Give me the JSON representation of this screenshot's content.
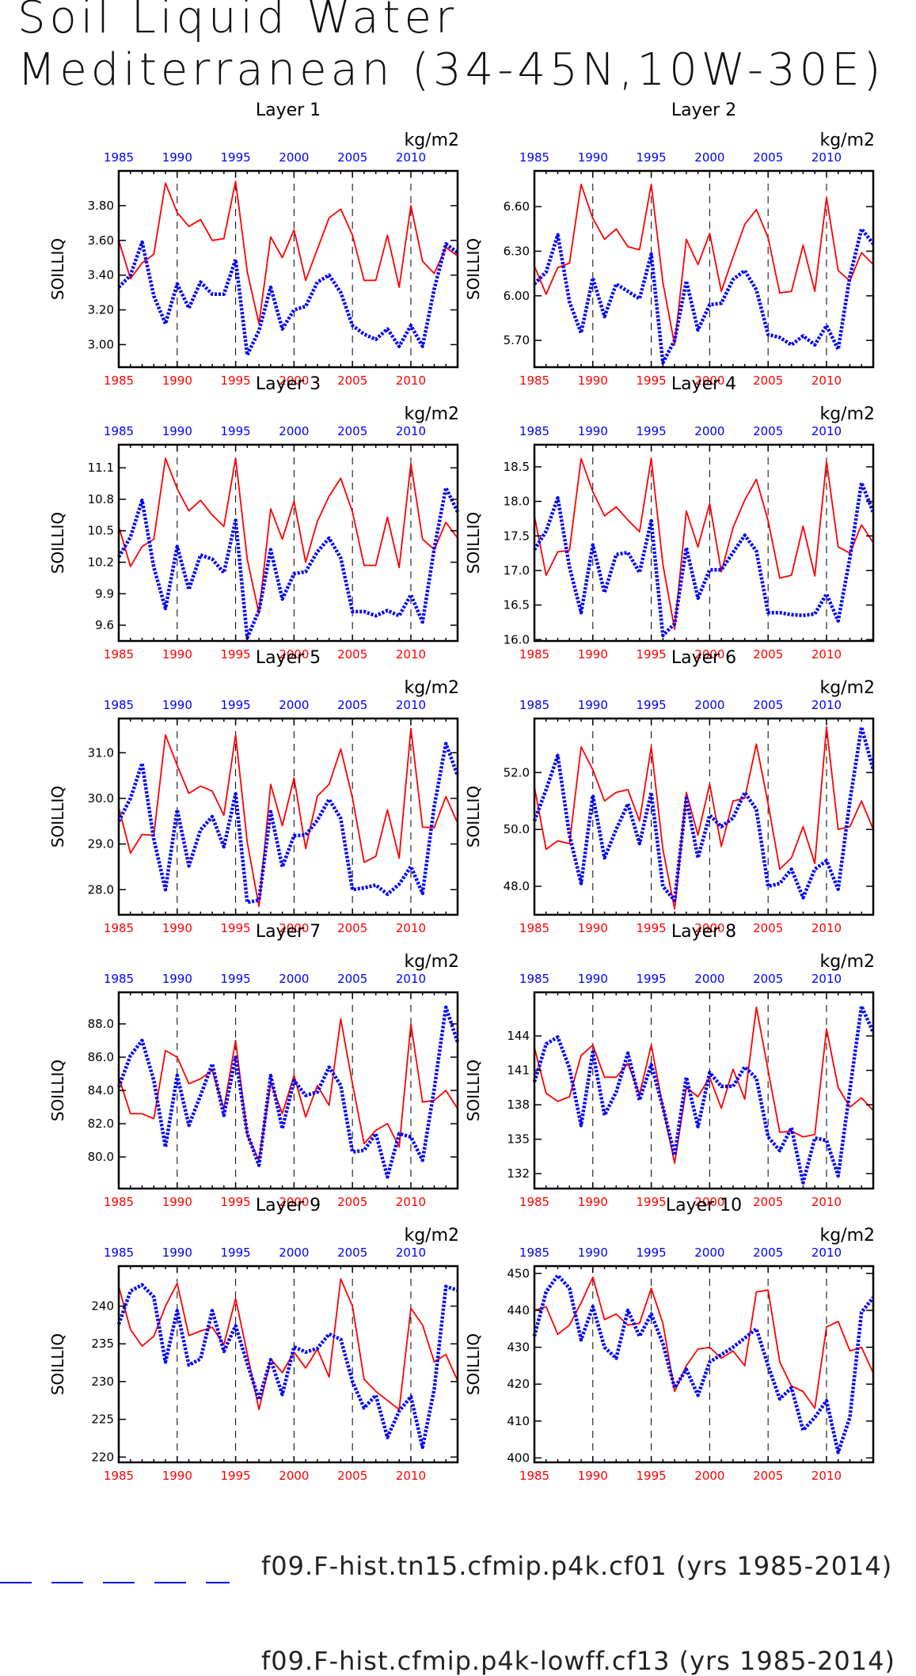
{
  "title_line1": "Soil Liquid Water",
  "title_line2": "Mediterranean (34-45N,10W-30E)",
  "ylabel": "SOILLIQ",
  "units": "kg/m2",
  "colors": {
    "blue": "#0000ff",
    "red": "#ff0000",
    "axis": "#000000"
  },
  "legend": [
    {
      "label": "f09.F-hist.tn15.cfmip.p4k.cf01 (yrs 1985-2014)",
      "color": "#0000ff",
      "style": "dashed"
    },
    {
      "label": "f09.F-hist.cfmip.p4k-lowff.cf13 (yrs 1985-2014)",
      "color": "#ff0000",
      "style": "solid"
    }
  ],
  "chart_data": [
    {
      "type": "line",
      "title": "Layer 1",
      "x_range": [
        1985,
        2014
      ],
      "x_ticks": [
        "1985",
        "1990",
        "1995",
        "2000",
        "2005",
        "2010"
      ],
      "ylim": [
        2.87,
        4.0
      ],
      "y_ticks": [
        "3.00",
        "3.20",
        "3.40",
        "3.60",
        "3.80"
      ],
      "y_tick_values": [
        3.0,
        3.2,
        3.4,
        3.6,
        3.8
      ],
      "series": [
        {
          "name": "f09.F-hist.tn15.cfmip.p4k.cf01 (yrs 1985-2014)",
          "color": "#0000ff",
          "values": [
            3.33,
            3.4,
            3.59,
            3.28,
            3.12,
            3.35,
            3.21,
            3.36,
            3.29,
            3.29,
            3.49,
            2.94,
            3.08,
            3.33,
            3.09,
            3.2,
            3.22,
            3.36,
            3.4,
            3.3,
            3.11,
            3.06,
            3.03,
            3.09,
            2.99,
            3.11,
            2.99,
            3.32,
            3.58,
            3.53
          ]
        },
        {
          "name": "f09.F-hist.cfmip.p4k-lowff.cf13 (yrs 1985-2014)",
          "color": "#ff0000",
          "values": [
            3.6,
            3.38,
            3.47,
            3.52,
            3.93,
            3.76,
            3.68,
            3.72,
            3.6,
            3.61,
            3.94,
            3.42,
            3.12,
            3.62,
            3.5,
            3.66,
            3.37,
            3.55,
            3.73,
            3.78,
            3.63,
            3.37,
            3.37,
            3.63,
            3.33,
            3.8,
            3.48,
            3.41,
            3.56,
            3.51
          ]
        }
      ]
    },
    {
      "type": "line",
      "title": "Layer 2",
      "x_range": [
        1985,
        2014
      ],
      "x_ticks": [
        "1985",
        "1990",
        "1995",
        "2000",
        "2005",
        "2010"
      ],
      "ylim": [
        5.52,
        6.84
      ],
      "y_ticks": [
        "5.70",
        "6.00",
        "6.30",
        "6.60"
      ],
      "y_tick_values": [
        5.7,
        6.0,
        6.3,
        6.6
      ],
      "series": [
        {
          "name": "f09.F-hist.tn15.cfmip.p4k.cf01 (yrs 1985-2014)",
          "color": "#0000ff",
          "values": [
            6.08,
            6.16,
            6.41,
            5.96,
            5.75,
            6.12,
            5.86,
            6.08,
            6.03,
            5.98,
            6.28,
            5.55,
            5.7,
            6.1,
            5.77,
            5.94,
            5.95,
            6.11,
            6.17,
            6.04,
            5.74,
            5.72,
            5.67,
            5.73,
            5.67,
            5.8,
            5.64,
            6.13,
            6.45,
            6.35
          ]
        },
        {
          "name": "f09.F-hist.cfmip.p4k-lowff.cf13 (yrs 1985-2014)",
          "color": "#ff0000",
          "values": [
            6.2,
            6.01,
            6.19,
            6.22,
            6.75,
            6.52,
            6.38,
            6.45,
            6.33,
            6.31,
            6.75,
            6.09,
            5.67,
            6.38,
            6.21,
            6.42,
            6.03,
            6.26,
            6.48,
            6.58,
            6.39,
            6.02,
            6.03,
            6.34,
            6.03,
            6.66,
            6.17,
            6.1,
            6.29,
            6.21
          ]
        }
      ]
    },
    {
      "type": "line",
      "title": "Layer 3",
      "x_range": [
        1985,
        2014
      ],
      "x_ticks": [
        "1985",
        "1990",
        "1995",
        "2000",
        "2005",
        "2010"
      ],
      "ylim": [
        9.45,
        11.32
      ],
      "y_ticks": [
        "9.6",
        "9.9",
        "10.2",
        "10.5",
        "10.8",
        "11.1"
      ],
      "y_tick_values": [
        9.6,
        9.9,
        10.2,
        10.5,
        10.8,
        11.1
      ],
      "series": [
        {
          "name": "f09.F-hist.tn15.cfmip.p4k.cf01 (yrs 1985-2014)",
          "color": "#0000ff",
          "values": [
            10.25,
            10.44,
            10.79,
            10.15,
            9.76,
            10.35,
            9.94,
            10.27,
            10.23,
            10.1,
            10.6,
            9.48,
            9.74,
            10.32,
            9.85,
            10.09,
            10.11,
            10.3,
            10.43,
            10.24,
            9.73,
            9.73,
            9.69,
            9.74,
            9.69,
            9.89,
            9.63,
            10.33,
            10.91,
            10.68
          ]
        },
        {
          "name": "f09.F-hist.cfmip.p4k-lowff.cf13 (yrs 1985-2014)",
          "color": "#ff0000",
          "values": [
            10.54,
            10.16,
            10.35,
            10.42,
            11.19,
            10.9,
            10.69,
            10.79,
            10.65,
            10.54,
            11.19,
            10.23,
            9.71,
            10.71,
            10.42,
            10.78,
            10.2,
            10.59,
            10.83,
            11.0,
            10.68,
            10.17,
            10.17,
            10.63,
            10.15,
            11.14,
            10.42,
            10.32,
            10.58,
            10.43
          ]
        }
      ]
    },
    {
      "type": "line",
      "title": "Layer 4",
      "x_range": [
        1985,
        2014
      ],
      "x_ticks": [
        "1985",
        "1990",
        "1995",
        "2000",
        "2005",
        "2010"
      ],
      "ylim": [
        15.98,
        18.82
      ],
      "y_ticks": [
        "16.0",
        "16.5",
        "17.0",
        "17.5",
        "18.0",
        "18.5"
      ],
      "y_tick_values": [
        16.0,
        16.5,
        17.0,
        17.5,
        18.0,
        18.5
      ],
      "series": [
        {
          "name": "f09.F-hist.tn15.cfmip.p4k.cf01 (yrs 1985-2014)",
          "color": "#0000ff",
          "values": [
            17.3,
            17.57,
            18.05,
            17.05,
            16.39,
            17.37,
            16.68,
            17.23,
            17.26,
            16.97,
            17.72,
            16.06,
            16.23,
            17.33,
            16.6,
            17.01,
            17.01,
            17.26,
            17.51,
            17.28,
            16.39,
            16.39,
            16.36,
            16.35,
            16.37,
            16.66,
            16.27,
            17.18,
            18.27,
            17.84
          ]
        },
        {
          "name": "f09.F-hist.cfmip.p4k-lowff.cf13 (yrs 1985-2014)",
          "color": "#ff0000",
          "values": [
            17.79,
            16.93,
            17.27,
            17.29,
            18.62,
            18.14,
            17.79,
            17.92,
            17.73,
            17.56,
            18.62,
            17.09,
            16.15,
            17.86,
            17.34,
            17.97,
            16.98,
            17.62,
            18.02,
            18.32,
            17.72,
            16.89,
            16.93,
            17.64,
            16.92,
            18.58,
            17.34,
            17.25,
            17.66,
            17.4
          ]
        }
      ]
    },
    {
      "type": "line",
      "title": "Layer 5",
      "x_range": [
        1985,
        2014
      ],
      "x_ticks": [
        "1985",
        "1990",
        "1995",
        "2000",
        "2005",
        "2010"
      ],
      "ylim": [
        27.45,
        31.75
      ],
      "y_ticks": [
        "28.0",
        "29.0",
        "30.0",
        "31.0"
      ],
      "y_tick_values": [
        28.0,
        29.0,
        30.0,
        31.0
      ],
      "series": [
        {
          "name": "f09.F-hist.tn15.cfmip.p4k.cf01 (yrs 1985-2014)",
          "color": "#0000ff",
          "values": [
            29.5,
            30.0,
            30.77,
            29.1,
            28.0,
            29.75,
            28.52,
            29.31,
            29.6,
            28.94,
            30.1,
            27.72,
            27.77,
            29.71,
            28.5,
            29.18,
            29.2,
            29.52,
            29.98,
            29.56,
            28.0,
            28.04,
            28.1,
            27.9,
            28.12,
            28.51,
            27.92,
            29.83,
            31.2,
            30.5
          ]
        },
        {
          "name": "f09.F-hist.cfmip.p4k-lowff.cf13 (yrs 1985-2014)",
          "color": "#ff0000",
          "values": [
            29.8,
            28.8,
            29.21,
            29.19,
            31.39,
            30.72,
            30.11,
            30.27,
            30.16,
            29.63,
            31.39,
            29.04,
            27.63,
            30.31,
            29.4,
            30.45,
            28.9,
            30.05,
            30.31,
            31.08,
            30.01,
            28.6,
            28.73,
            29.75,
            28.69,
            31.53,
            29.37,
            29.36,
            30.04,
            29.46
          ]
        }
      ]
    },
    {
      "type": "line",
      "title": "Layer 6",
      "x_range": [
        1985,
        2014
      ],
      "x_ticks": [
        "1985",
        "1990",
        "1995",
        "2000",
        "2005",
        "2010"
      ],
      "ylim": [
        47.0,
        53.9
      ],
      "y_ticks": [
        "48.0",
        "50.0",
        "52.0"
      ],
      "y_tick_values": [
        48.0,
        50.0,
        52.0
      ],
      "series": [
        {
          "name": "f09.F-hist.tn15.cfmip.p4k.cf01 (yrs 1985-2014)",
          "color": "#0000ff",
          "values": [
            50.3,
            51.4,
            52.6,
            49.8,
            48.1,
            51.2,
            49.0,
            50.0,
            50.9,
            49.5,
            51.3,
            48.0,
            47.5,
            51.1,
            49.0,
            50.5,
            50.1,
            50.4,
            51.3,
            50.7,
            48.0,
            48.1,
            48.6,
            47.6,
            48.6,
            48.9,
            47.9,
            51.0,
            53.6,
            52.1
          ]
        },
        {
          "name": "f09.F-hist.cfmip.p4k-lowff.cf13 (yrs 1985-2014)",
          "color": "#ff0000",
          "values": [
            51.5,
            49.3,
            49.6,
            49.5,
            52.9,
            52.1,
            51.0,
            51.3,
            51.4,
            50.3,
            52.9,
            49.3,
            47.2,
            51.3,
            49.8,
            51.6,
            49.4,
            51.0,
            51.1,
            53.0,
            50.9,
            48.6,
            49.0,
            50.1,
            48.8,
            53.6,
            50.0,
            50.1,
            51.0,
            50.0
          ]
        }
      ]
    },
    {
      "type": "line",
      "title": "Layer 7",
      "x_range": [
        1985,
        2014
      ],
      "x_ticks": [
        "1985",
        "1990",
        "1995",
        "2000",
        "2005",
        "2010"
      ],
      "ylim": [
        78.1,
        89.9
      ],
      "y_ticks": [
        "80.0",
        "82.0",
        "84.0",
        "86.0",
        "88.0"
      ],
      "y_tick_values": [
        80.0,
        82.0,
        84.0,
        86.0,
        88.0
      ],
      "series": [
        {
          "name": "f09.F-hist.tn15.cfmip.p4k.cf01 (yrs 1985-2014)",
          "color": "#0000ff",
          "values": [
            84.2,
            86.1,
            87.0,
            84.6,
            80.6,
            84.9,
            81.9,
            83.7,
            85.6,
            82.5,
            86.0,
            81.4,
            79.5,
            84.9,
            81.7,
            84.6,
            83.7,
            83.9,
            85.4,
            84.3,
            80.3,
            80.4,
            81.4,
            78.8,
            81.4,
            81.2,
            79.8,
            84.1,
            89.0,
            86.9
          ]
        },
        {
          "name": "f09.F-hist.cfmip.p4k-lowff.cf13 (yrs 1985-2014)",
          "color": "#ff0000",
          "values": [
            84.8,
            82.6,
            82.6,
            82.3,
            86.4,
            86.0,
            84.4,
            84.7,
            85.2,
            82.9,
            87.0,
            81.3,
            79.8,
            84.5,
            82.6,
            84.9,
            82.4,
            84.3,
            83.1,
            88.3,
            84.4,
            80.8,
            81.6,
            82.0,
            80.6,
            88.0,
            83.3,
            83.4,
            84.0,
            82.9
          ]
        }
      ]
    },
    {
      "type": "line",
      "title": "Layer 8",
      "x_range": [
        1985,
        2014
      ],
      "x_ticks": [
        "1985",
        "1990",
        "1995",
        "2000",
        "2005",
        "2010"
      ],
      "ylim": [
        130.7,
        147.8
      ],
      "y_ticks": [
        "132",
        "135",
        "138",
        "141",
        "144"
      ],
      "y_tick_values": [
        132,
        135,
        138,
        141,
        144
      ],
      "series": [
        {
          "name": "f09.F-hist.tn15.cfmip.p4k.cf01 (yrs 1985-2014)",
          "color": "#0000ff",
          "values": [
            140.0,
            143.3,
            143.9,
            141.2,
            136.2,
            142.6,
            137.1,
            139.1,
            142.5,
            138.4,
            141.5,
            137.8,
            133.6,
            140.4,
            136.1,
            140.8,
            139.6,
            139.6,
            141.3,
            140.3,
            135.2,
            134.0,
            136.0,
            131.2,
            135.1,
            134.9,
            131.8,
            139.3,
            146.6,
            144.3
          ]
        },
        {
          "name": "f09.F-hist.cfmip.p4k-lowff.cf13 (yrs 1985-2014)",
          "color": "#ff0000",
          "values": [
            143.0,
            139.0,
            138.3,
            138.7,
            142.3,
            143.2,
            140.4,
            140.4,
            141.6,
            138.9,
            143.2,
            137.8,
            132.9,
            139.5,
            138.7,
            140.4,
            137.7,
            141.1,
            138.5,
            146.5,
            141.0,
            135.6,
            135.7,
            135.2,
            135.4,
            144.6,
            139.5,
            137.8,
            138.6,
            137.5
          ]
        }
      ]
    },
    {
      "type": "line",
      "title": "Layer 9",
      "x_range": [
        1985,
        2014
      ],
      "x_ticks": [
        "1985",
        "1990",
        "1995",
        "2000",
        "2005",
        "2010"
      ],
      "ylim": [
        219.3,
        245.3
      ],
      "y_ticks": [
        "220",
        "225",
        "230",
        "235",
        "240"
      ],
      "y_tick_values": [
        220,
        225,
        230,
        235,
        240
      ],
      "series": [
        {
          "name": "f09.F-hist.tn15.cfmip.p4k.cf01 (yrs 1985-2014)",
          "color": "#0000ff",
          "values": [
            237.6,
            242.0,
            242.8,
            241.2,
            232.6,
            239.4,
            232.2,
            233.0,
            239.4,
            234.0,
            237.4,
            232.4,
            227.6,
            232.9,
            228.3,
            234.6,
            233.9,
            234.4,
            236.3,
            235.6,
            230.0,
            226.5,
            228.2,
            222.6,
            226.1,
            228.0,
            221.3,
            229.0,
            242.6,
            242.1
          ]
        },
        {
          "name": "f09.F-hist.cfmip.p4k-lowff.cf13 (yrs 1985-2014)",
          "color": "#ff0000",
          "values": [
            242.6,
            236.9,
            234.7,
            236.0,
            240.0,
            243.0,
            236.1,
            236.7,
            237.2,
            234.9,
            241.0,
            233.7,
            226.3,
            233.0,
            231.2,
            233.9,
            231.8,
            234.3,
            230.6,
            243.6,
            240.0,
            230.3,
            228.7,
            227.5,
            226.3,
            239.7,
            237.5,
            232.6,
            233.6,
            230.1
          ]
        }
      ]
    },
    {
      "type": "line",
      "title": "Layer 10",
      "x_range": [
        1985,
        2014
      ],
      "x_ticks": [
        "1985",
        "1990",
        "1995",
        "2000",
        "2005",
        "2010"
      ],
      "ylim": [
        398.8,
        452.0
      ],
      "y_ticks": [
        "400",
        "410",
        "420",
        "430",
        "440",
        "450"
      ],
      "y_tick_values": [
        400,
        410,
        420,
        430,
        440,
        450
      ],
      "series": [
        {
          "name": "f09.F-hist.tn15.cfmip.p4k.cf01 (yrs 1985-2014)",
          "color": "#0000ff",
          "values": [
            433.0,
            445.0,
            449.5,
            446.0,
            432.0,
            441.0,
            430.0,
            427.0,
            440.0,
            433.0,
            439.0,
            431.0,
            419.0,
            424.0,
            417.0,
            426.0,
            428.0,
            430.0,
            432.5,
            435.0,
            425.0,
            416.0,
            419.0,
            407.5,
            411.0,
            415.5,
            401.5,
            411.0,
            439.5,
            443.5
          ]
        },
        {
          "name": "f09.F-hist.cfmip.p4k-lowff.cf13 (yrs 1985-2014)",
          "color": "#ff0000",
          "values": [
            440.0,
            441.0,
            433.5,
            436.0,
            442.0,
            449.0,
            437.5,
            439.0,
            436.0,
            436.5,
            446.0,
            436.5,
            418.0,
            425.0,
            429.5,
            430.0,
            427.0,
            429.0,
            425.0,
            445.0,
            445.5,
            426.0,
            419.5,
            418.0,
            413.5,
            435.5,
            437.0,
            429.0,
            430.0,
            423.0
          ]
        }
      ]
    }
  ]
}
